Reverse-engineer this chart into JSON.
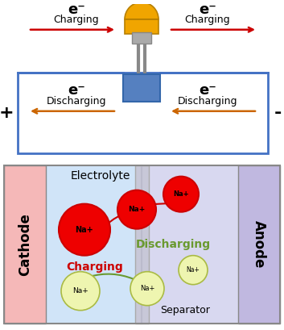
{
  "fig_width": 3.53,
  "fig_height": 4.09,
  "dpi": 100,
  "top_panel": {
    "border_color": "#4472c4",
    "plus_label": "+",
    "minus_label": "-",
    "charging_label": "Charging",
    "discharging_label": "Discharging",
    "electron_symbol": "e⁻",
    "arrow_charging_color": "#cc0000",
    "arrow_discharging_color": "#cc6600",
    "bulb_body_color": "#f0a500",
    "bulb_base_color": "#999999",
    "connector_color": "#5580c0"
  },
  "bottom_panel": {
    "cathode_color": "#f5b8b8",
    "electrolyte_left_color": "#d0e4f8",
    "electrolyte_right_color": "#d8d8f0",
    "separator_color": "#c8c8d8",
    "anode_color": "#c0b8e0",
    "cathode_label": "Cathode",
    "anode_label": "Anode",
    "electrolyte_label": "Electrolyte",
    "separator_label": "Separator",
    "charging_label": "Charging",
    "discharging_label": "Discharging",
    "charging_color": "#cc0000",
    "discharging_color": "#6a9a30",
    "na_label": "Na+",
    "red_circle_color": "#ee0000",
    "yellow_circle_color": "#eef5b0"
  }
}
